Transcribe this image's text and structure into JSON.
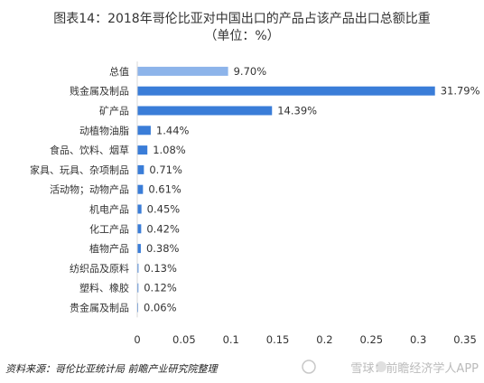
{
  "header": {
    "title_line1": "图表14：2018年哥伦比亚对中国出口的产品占该产品出口总额比重",
    "title_line2": "（单位：%）"
  },
  "footer": {
    "source": "资料来源：哥伦比亚统计局 前瞻产业研究院整理"
  },
  "watermark": {
    "text": "雪球：前瞻经济学人APP"
  },
  "chart_data": {
    "type": "bar",
    "orientation": "horizontal",
    "categories": [
      "总值",
      "贱金属及制品",
      "矿产品",
      "动植物油脂",
      "食品、饮料、烟草",
      "家具、玩具、杂项制品",
      "活动物；动物产品",
      "机电产品",
      "化工产品",
      "植物产品",
      "纺织品及原料",
      "塑料、橡胶",
      "贵金属及制品"
    ],
    "values": [
      0.097,
      0.3179,
      0.1439,
      0.0144,
      0.0108,
      0.0071,
      0.0061,
      0.0045,
      0.0042,
      0.0038,
      0.0013,
      0.0012,
      0.0006
    ],
    "data_labels": [
      "9.70%",
      "31.79%",
      "14.39%",
      "1.44%",
      "1.08%",
      "0.71%",
      "0.61%",
      "0.45%",
      "0.42%",
      "0.38%",
      "0.13%",
      "0.12%",
      "0.06%"
    ],
    "x_ticks": [
      "0",
      "0.05",
      "0.1",
      "0.15",
      "0.2",
      "0.25",
      "0.3",
      "0.35"
    ],
    "xlim": [
      0,
      0.35
    ],
    "grid": false,
    "colors": {
      "highlight": "#8db4ea",
      "bar": "#3a7dd8",
      "axis": "#d9d9d9"
    }
  }
}
